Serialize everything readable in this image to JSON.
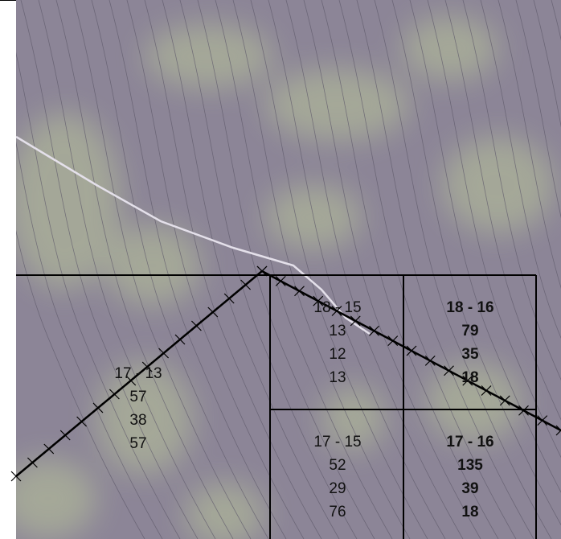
{
  "parcels": [
    {
      "lines": [
        "17 - 13",
        "57",
        "38",
        "57"
      ],
      "bold": false
    },
    {
      "lines": [
        "18 - 15",
        "13",
        "12",
        "13"
      ],
      "bold": false
    },
    {
      "lines": [
        "18 - 16",
        "79",
        "35",
        "18"
      ],
      "bold": true
    },
    {
      "lines": [
        "17 - 15",
        "52",
        "29",
        "76"
      ],
      "bold": false
    },
    {
      "lines": [
        "17 - 16",
        "135",
        "39",
        "18"
      ],
      "bold": true
    }
  ]
}
